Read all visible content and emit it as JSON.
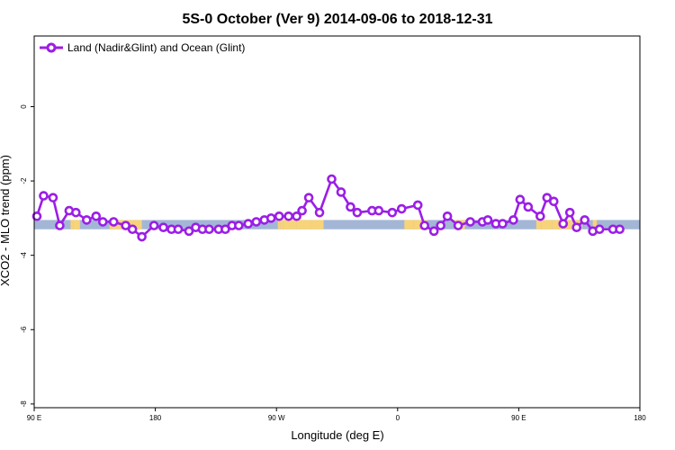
{
  "chart_data": {
    "type": "line",
    "title": "5S-0 October (Ver 9)   2014-09-06 to 2018-12-31",
    "xlabel": "Longitude (deg E)",
    "ylabel": "XCO2 - MLO trend (ppm)",
    "x_ticks": [
      {
        "value": 90,
        "label": "90 E"
      },
      {
        "value": 180,
        "label": "180"
      },
      {
        "value": 270,
        "label": "90 W"
      },
      {
        "value": 360,
        "label": "0"
      },
      {
        "value": 450,
        "label": "90 E"
      },
      {
        "value": 540,
        "label": "180"
      }
    ],
    "y_ticks": [
      0,
      -2,
      -4,
      -6,
      -8
    ],
    "xlim": [
      90,
      540
    ],
    "ylim": [
      -8.1,
      1.9
    ],
    "grid": false,
    "legend_position": "top-left",
    "colors": {
      "series": "#9b1ee6",
      "ocean": "#a3b6d6",
      "land": "#f7d37a"
    },
    "background_band": {
      "y_range": [
        -3.3,
        -3.05
      ],
      "land_segments": [
        [
          117,
          119
        ],
        [
          119,
          124
        ],
        [
          146,
          148
        ],
        [
          146,
          170
        ],
        [
          271,
          273
        ],
        [
          273,
          275
        ],
        [
          275,
          285
        ],
        [
          285,
          296
        ],
        [
          296,
          305
        ],
        [
          365,
          372
        ],
        [
          372,
          378
        ],
        [
          378,
          382
        ],
        [
          402,
          410
        ],
        [
          463,
          467
        ],
        [
          467,
          475
        ],
        [
          475,
          480
        ],
        [
          480,
          490
        ],
        [
          490,
          497
        ],
        [
          505,
          508
        ]
      ]
    },
    "series": [
      {
        "name": "Land (Nadir&Glint) and Ocean (Glint)",
        "x": [
          92,
          97,
          104,
          109,
          116,
          121,
          129,
          136,
          141,
          149,
          158,
          163,
          170,
          179,
          186,
          192,
          197,
          205,
          210,
          215,
          220,
          227,
          232,
          237,
          242,
          249,
          255,
          261,
          266,
          272,
          279,
          285,
          289,
          294,
          302,
          311,
          318,
          325,
          330,
          341,
          346,
          356,
          363,
          375,
          380,
          387,
          392,
          397,
          405,
          414,
          423,
          427,
          433,
          438,
          446,
          451,
          457,
          466,
          471,
          476,
          483,
          488,
          493,
          499,
          505,
          510,
          520,
          525
        ],
        "y": [
          -2.95,
          -2.4,
          -2.45,
          -3.2,
          -2.8,
          -2.85,
          -3.05,
          -2.95,
          -3.1,
          -3.1,
          -3.2,
          -3.3,
          -3.5,
          -3.2,
          -3.25,
          -3.3,
          -3.3,
          -3.35,
          -3.25,
          -3.3,
          -3.3,
          -3.3,
          -3.3,
          -3.2,
          -3.2,
          -3.15,
          -3.1,
          -3.05,
          -3.0,
          -2.95,
          -2.95,
          -2.95,
          -2.8,
          -2.45,
          -2.85,
          -1.95,
          -2.3,
          -2.7,
          -2.85,
          -2.8,
          -2.8,
          -2.85,
          -2.75,
          -2.65,
          -3.2,
          -3.35,
          -3.2,
          -2.95,
          -3.2,
          -3.1,
          -3.1,
          -3.05,
          -3.15,
          -3.15,
          -3.05,
          -2.5,
          -2.7,
          -2.95,
          -2.45,
          -2.55,
          -3.15,
          -2.85,
          -3.25,
          -3.05,
          -3.35,
          -3.3,
          -3.3,
          -3.3
        ]
      }
    ]
  }
}
